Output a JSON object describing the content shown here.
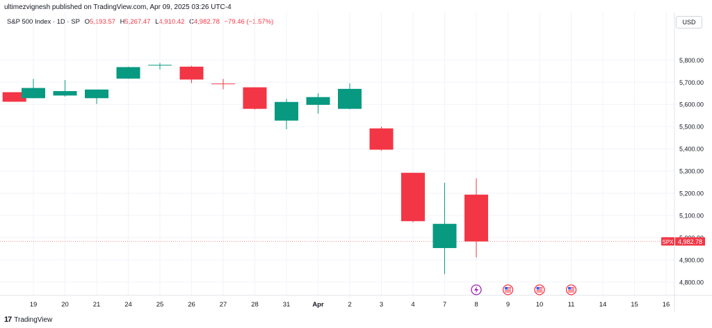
{
  "header": {
    "published_line": "ultimezvignesh published on TradingView.com, Apr 09, 2025 03:26 UTC-4",
    "symbol": "S&P 500 Index · 1D · SP",
    "open_label": "O",
    "open": "5,193.57",
    "high_label": "H",
    "high": "5,267.47",
    "low_label": "L",
    "low": "4,910.42",
    "close_label": "C",
    "close": "4,982.78",
    "change": "−79.46 (−1.57%)",
    "currency": "USD"
  },
  "footer": {
    "brand": "TradingView",
    "logo": "tradingview-logo-icon"
  },
  "colors": {
    "up": "#089981",
    "down": "#f23645",
    "grid": "#f0f3fa",
    "text": "#131722"
  },
  "chart_data": {
    "type": "candlestick",
    "symbol": "SPX",
    "ylim": [
      4740,
      5920
    ],
    "y_ticks": [
      "5,800.00",
      "5,700.00",
      "5,600.00",
      "5,500.00",
      "5,400.00",
      "5,300.00",
      "5,200.00",
      "5,100.00",
      "5,000.00",
      "4,900.00",
      "4,800.00"
    ],
    "y_tick_values": [
      5800,
      5700,
      5600,
      5500,
      5400,
      5300,
      5200,
      5100,
      5000,
      4900,
      4800
    ],
    "x_labels": [
      "19",
      "20",
      "21",
      "24",
      "25",
      "26",
      "27",
      "28",
      "31",
      "Apr",
      "2",
      "3",
      "4",
      "7",
      "8",
      "9",
      "10",
      "11",
      "14",
      "15",
      "16"
    ],
    "candles": [
      {
        "slot": -0.6,
        "o": 5655,
        "h": 5655,
        "l": 5612,
        "c": 5612
      },
      {
        "slot": 0,
        "o": 5628,
        "h": 5715,
        "l": 5628,
        "c": 5674
      },
      {
        "slot": 1,
        "o": 5640,
        "h": 5710,
        "l": 5635,
        "c": 5660
      },
      {
        "slot": 2,
        "o": 5628,
        "h": 5667,
        "l": 5602,
        "c": 5667
      },
      {
        "slot": 3,
        "o": 5716,
        "h": 5770,
        "l": 5715,
        "c": 5768
      },
      {
        "slot": 4,
        "o": 5776,
        "h": 5787,
        "l": 5757,
        "c": 5778
      },
      {
        "slot": 5,
        "o": 5770,
        "h": 5774,
        "l": 5696,
        "c": 5712
      },
      {
        "slot": 6,
        "o": 5694,
        "h": 5715,
        "l": 5668,
        "c": 5693
      },
      {
        "slot": 7,
        "o": 5677,
        "h": 5677,
        "l": 5577,
        "c": 5580
      },
      {
        "slot": 8,
        "o": 5527,
        "h": 5625,
        "l": 5488,
        "c": 5611
      },
      {
        "slot": 9,
        "o": 5598,
        "h": 5650,
        "l": 5558,
        "c": 5633
      },
      {
        "slot": 10,
        "o": 5580,
        "h": 5695,
        "l": 5578,
        "c": 5670
      },
      {
        "slot": 11,
        "o": 5492,
        "h": 5500,
        "l": 5392,
        "c": 5396
      },
      {
        "slot": 12,
        "o": 5292,
        "h": 5292,
        "l": 5069,
        "c": 5074
      },
      {
        "slot": 13,
        "o": 4953,
        "h": 5247,
        "l": 4836,
        "c": 5062
      },
      {
        "slot": 14,
        "o": 5193.57,
        "h": 5267.47,
        "l": 4910.42,
        "c": 4982.78
      }
    ],
    "last_price": {
      "label": "SPX",
      "value": "4,982.78",
      "y": 4982.78
    },
    "events": [
      {
        "slot": 14,
        "icon": "lightning-icon"
      },
      {
        "slot": 15,
        "icon": "us-flag-icon"
      },
      {
        "slot": 16,
        "icon": "us-flag-icon"
      },
      {
        "slot": 17,
        "icon": "us-flag-icon"
      }
    ]
  }
}
